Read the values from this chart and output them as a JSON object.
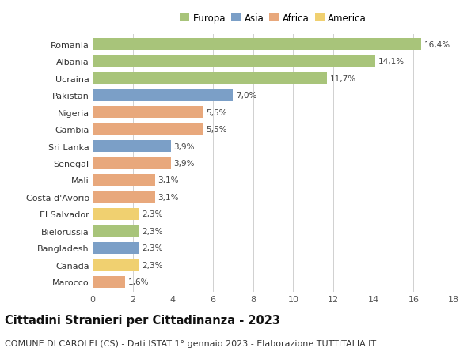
{
  "countries": [
    "Romania",
    "Albania",
    "Ucraina",
    "Pakistan",
    "Nigeria",
    "Gambia",
    "Sri Lanka",
    "Senegal",
    "Mali",
    "Costa d'Avorio",
    "El Salvador",
    "Bielorussia",
    "Bangladesh",
    "Canada",
    "Marocco"
  ],
  "values": [
    16.4,
    14.1,
    11.7,
    7.0,
    5.5,
    5.5,
    3.9,
    3.9,
    3.1,
    3.1,
    2.3,
    2.3,
    2.3,
    2.3,
    1.6
  ],
  "labels": [
    "16,4%",
    "14,1%",
    "11,7%",
    "7,0%",
    "5,5%",
    "5,5%",
    "3,9%",
    "3,9%",
    "3,1%",
    "3,1%",
    "2,3%",
    "2,3%",
    "2,3%",
    "2,3%",
    "1,6%"
  ],
  "continents": [
    "Europa",
    "Europa",
    "Europa",
    "Asia",
    "Africa",
    "Africa",
    "Asia",
    "Africa",
    "Africa",
    "Africa",
    "America",
    "Europa",
    "Asia",
    "America",
    "Africa"
  ],
  "continent_colors": {
    "Europa": "#a8c47a",
    "Asia": "#7b9fc7",
    "Africa": "#e8a87c",
    "America": "#f0d070"
  },
  "legend_order": [
    "Europa",
    "Asia",
    "Africa",
    "America"
  ],
  "legend_colors": [
    "#a8c47a",
    "#7b9fc7",
    "#e8a87c",
    "#f0d070"
  ],
  "title": "Cittadini Stranieri per Cittadinanza - 2023",
  "subtitle": "COMUNE DI CAROLEI (CS) - Dati ISTAT 1° gennaio 2023 - Elaborazione TUTTITALIA.IT",
  "xlim": [
    0,
    18
  ],
  "xticks": [
    0,
    2,
    4,
    6,
    8,
    10,
    12,
    14,
    16,
    18
  ],
  "background_color": "#ffffff",
  "grid_color": "#d0d0d0",
  "bar_height": 0.72,
  "title_fontsize": 10.5,
  "subtitle_fontsize": 8.0,
  "label_fontsize": 7.5,
  "tick_fontsize": 8.0,
  "legend_fontsize": 8.5
}
